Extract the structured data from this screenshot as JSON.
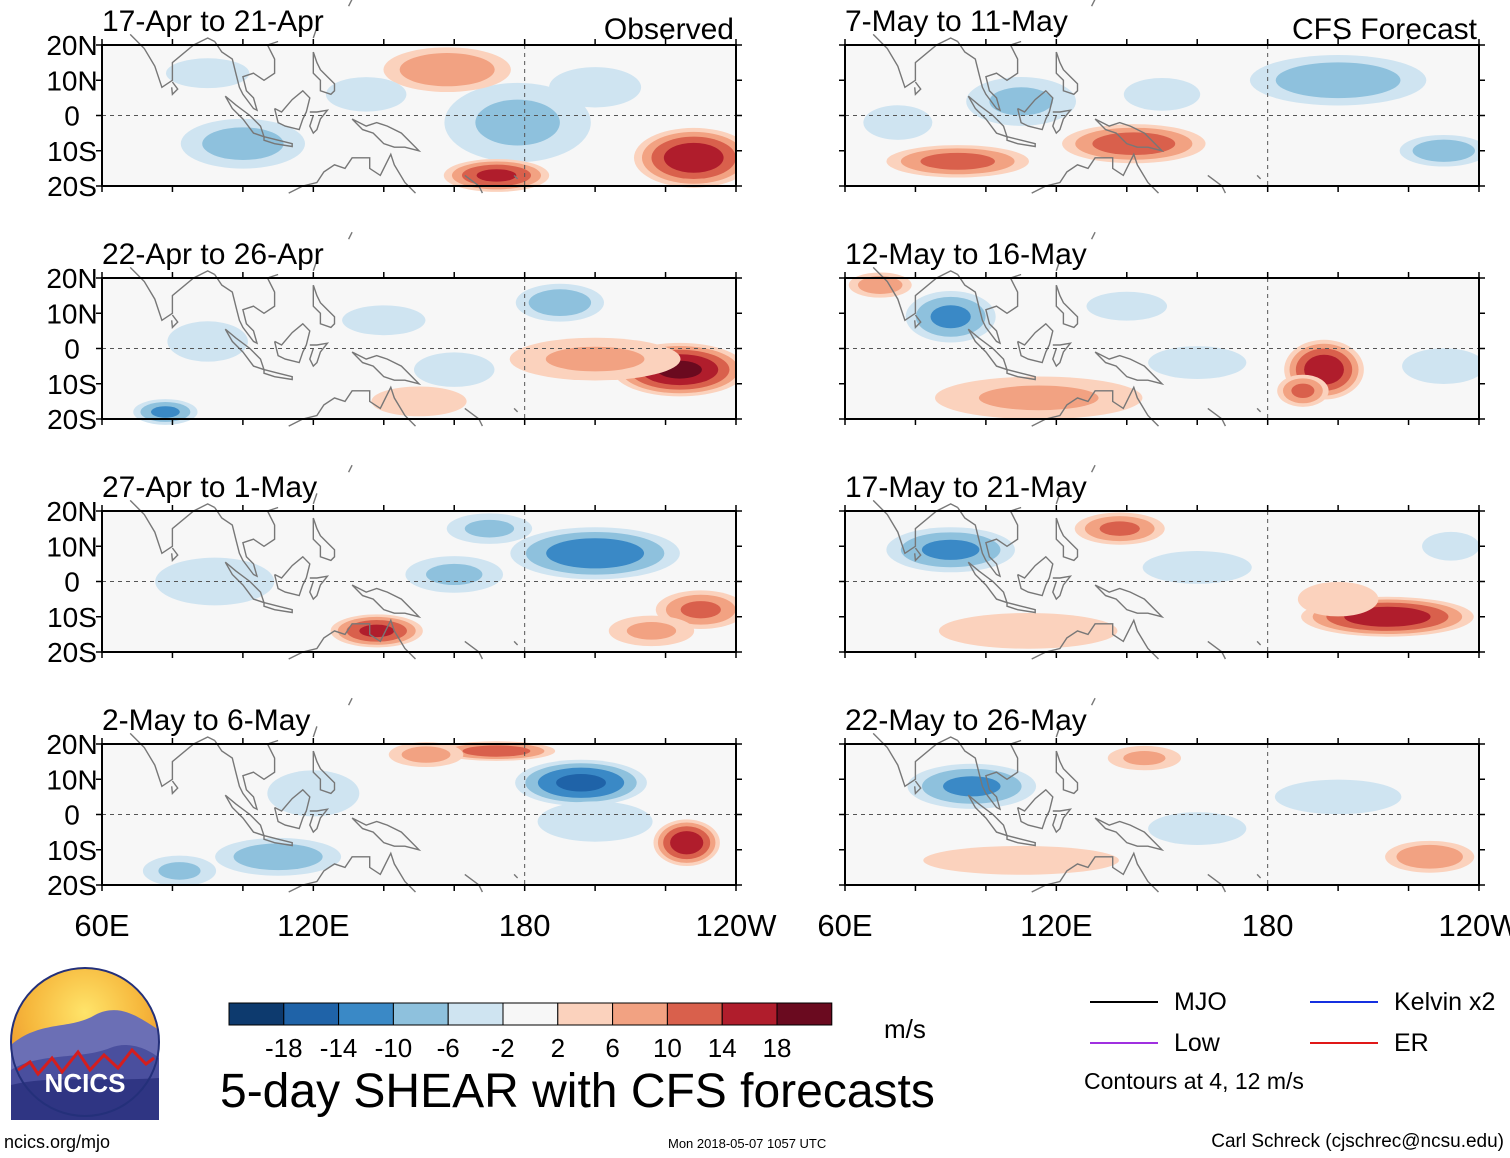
{
  "chart_data": {
    "type": "heatmap",
    "title": "5-day SHEAR with CFS forecasts",
    "variable": "200-850 hPa wind shear anomaly",
    "units": "m/s",
    "x_axis": {
      "ticks": [
        "60E",
        "120E",
        "180",
        "120W"
      ],
      "range_deg_east": [
        60,
        240
      ]
    },
    "y_axis": {
      "ticks": [
        "20N",
        "10N",
        "0",
        "10S",
        "20S"
      ],
      "range_deg": [
        -20,
        20
      ]
    },
    "colorbar": {
      "tick_labels": [
        "-18",
        "-14",
        "-10",
        "-6",
        "-2",
        "2",
        "6",
        "10",
        "14",
        "18"
      ],
      "colors": [
        "#0d3a6e",
        "#1f63a8",
        "#3a89c6",
        "#8ec1dd",
        "#cfe4f1",
        "#f7f7f7",
        "#fbd2bd",
        "#f2a282",
        "#d9604c",
        "#b01d2c",
        "#6a0a1f"
      ]
    },
    "columns": [
      {
        "header": "Observed",
        "panels": [
          {
            "period": "17-Apr to 21-Apr",
            "blobs": [
              [
                178,
                -2,
                24,
                13,
                -6
              ],
              [
                228,
                -12,
                18,
                9,
                16
              ],
              [
                172,
                -17,
                16,
                5,
                14
              ],
              [
                158,
                13,
                20,
                7,
                9
              ],
              [
                100,
                -8,
                20,
                8,
                -7
              ],
              [
                90,
                12,
                14,
                5,
                -5
              ],
              [
                135,
                6,
                14,
                6,
                -4
              ],
              [
                200,
                8,
                16,
                7,
                -4
              ]
            ]
          },
          {
            "period": "22-Apr to 26-Apr",
            "blobs": [
              [
                224,
                -6,
                20,
                8,
                18
              ],
              [
                200,
                -3,
                28,
                7,
                6
              ],
              [
                190,
                13,
                14,
                6,
                -8
              ],
              [
                150,
                -15,
                16,
                5,
                5
              ],
              [
                78,
                -18,
                10,
                4,
                -10
              ],
              [
                140,
                8,
                14,
                5,
                -5
              ],
              [
                160,
                -6,
                14,
                6,
                -4
              ],
              [
                90,
                2,
                14,
                7,
                -4
              ]
            ]
          },
          {
            "period": "27-Apr to 1-May",
            "blobs": [
              [
                200,
                8,
                26,
                8,
                -12
              ],
              [
                230,
                -8,
                14,
                6,
                10
              ],
              [
                138,
                -14,
                14,
                5,
                14
              ],
              [
                92,
                0,
                20,
                8,
                -5
              ],
              [
                160,
                2,
                16,
                6,
                -6
              ],
              [
                216,
                -14,
                14,
                5,
                6
              ],
              [
                170,
                15,
                14,
                5,
                -6
              ]
            ]
          },
          {
            "period": "2-May to 6-May",
            "blobs": [
              [
                196,
                9,
                20,
                7,
                -14
              ],
              [
                226,
                -8,
                10,
                7,
                16
              ],
              [
                172,
                18,
                18,
                3,
                12
              ],
              [
                152,
                17,
                12,
                4,
                7
              ],
              [
                110,
                -12,
                20,
                6,
                -8
              ],
              [
                120,
                6,
                16,
                8,
                -4
              ],
              [
                82,
                -16,
                12,
                5,
                -6
              ],
              [
                200,
                -2,
                20,
                7,
                -4
              ]
            ]
          }
        ]
      },
      {
        "header": "CFS Forecast",
        "panels": [
          {
            "period": "7-May to 11-May",
            "blobs": [
              [
                142,
                -8,
                22,
                6,
                12
              ],
              [
                92,
                -13,
                22,
                5,
                11
              ],
              [
                200,
                10,
                28,
                8,
                -8
              ],
              [
                230,
                -10,
                14,
                5,
                -8
              ],
              [
                110,
                4,
                18,
                8,
                -6
              ],
              [
                75,
                -2,
                12,
                6,
                -4
              ],
              [
                150,
                6,
                14,
                6,
                -3
              ]
            ]
          },
          {
            "period": "12-May to 16-May",
            "blobs": [
              [
                196,
                -6,
                12,
                9,
                16
              ],
              [
                190,
                -12,
                8,
                5,
                10
              ],
              [
                90,
                9,
                14,
                8,
                -10
              ],
              [
                115,
                -14,
                34,
                7,
                6
              ],
              [
                70,
                18,
                10,
                4,
                8
              ],
              [
                140,
                12,
                14,
                5,
                -4
              ],
              [
                230,
                -5,
                14,
                6,
                -5
              ],
              [
                160,
                -4,
                18,
                6,
                -3
              ]
            ]
          },
          {
            "period": "17-May to 21-May",
            "blobs": [
              [
                214,
                -10,
                26,
                6,
                16
              ],
              [
                90,
                9,
                20,
                7,
                -10
              ],
              [
                112,
                -14,
                30,
                6,
                5
              ],
              [
                138,
                15,
                14,
                5,
                10
              ],
              [
                200,
                -5,
                14,
                6,
                4
              ],
              [
                160,
                4,
                20,
                6,
                -3
              ],
              [
                232,
                10,
                10,
                5,
                -4
              ]
            ]
          },
          {
            "period": "22-May to 26-May",
            "blobs": [
              [
                96,
                8,
                20,
                7,
                -10
              ],
              [
                226,
                -12,
                14,
                5,
                9
              ],
              [
                110,
                -13,
                34,
                5,
                4
              ],
              [
                145,
                16,
                12,
                4,
                6
              ],
              [
                200,
                5,
                22,
                6,
                -4
              ],
              [
                160,
                -4,
                18,
                6,
                -3
              ]
            ]
          }
        ]
      }
    ],
    "blob_format": "[lon_degE, lat_deg, lon_radius_deg, lat_radius_deg, peak_m_per_s]"
  },
  "legend": {
    "items": [
      {
        "label": "MJO",
        "color": "#000000"
      },
      {
        "label": "Kelvin x2",
        "color": "#1530e0"
      },
      {
        "label": "Low",
        "color": "#a030e0"
      },
      {
        "label": "ER",
        "color": "#e01818"
      }
    ],
    "contour_note": "Contours at 4, 12 m/s"
  },
  "footer": {
    "logo_text": "NCICS",
    "site": "ncics.org/mjo",
    "timestamp": "Mon 2018-05-07 1057 UTC",
    "credit": "Carl Schreck (cjschrec@ncsu.edu)"
  },
  "colors": {
    "land_outline": "#777777",
    "frame": "#000000"
  }
}
